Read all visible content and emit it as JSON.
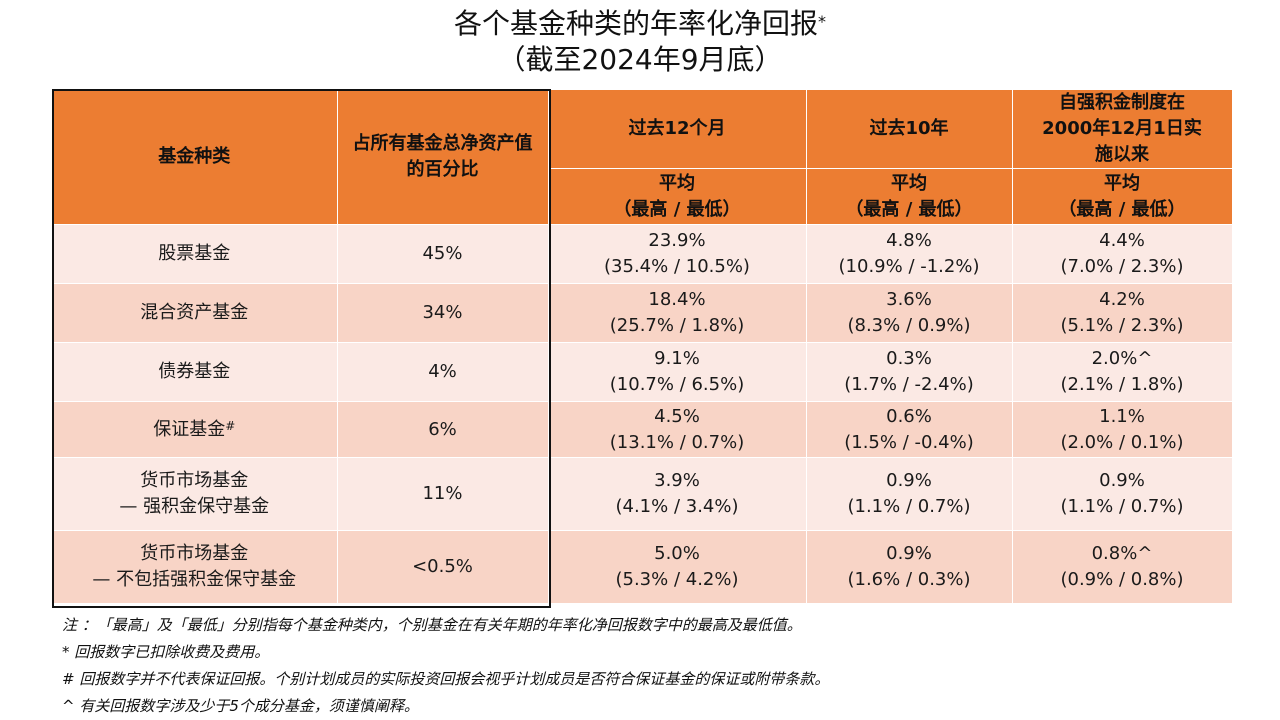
{
  "title": {
    "line1": "各个基金种类的年率化净回报",
    "line1_mark": "*",
    "line2": "（截至2024年9月底）"
  },
  "header": {
    "col1": "基金种类",
    "col2": "占所有基金总净资产值的百分比",
    "col3": "过去12个月",
    "col4": "过去10年",
    "col5": "自强积金制度在2000年12月1日实施以来",
    "sub3_avg": "平均",
    "sub3_range": "（最高 / 最低）",
    "sub4_avg": "平均",
    "sub4_range": "（最高 / 最低）",
    "sub5_avg": "平均",
    "sub5_range": "（最高 / 最低）"
  },
  "rows": [
    {
      "fund": "股票基金",
      "fund_mark": "",
      "fund2": "",
      "pct": "45%",
      "m12": "23.9%",
      "m12_range": "(35.4% / 10.5%)",
      "y10": "4.8%",
      "y10_range": "(10.9% / -1.2%)",
      "since": "4.4%",
      "since_range": "(7.0% / 2.3%)"
    },
    {
      "fund": "混合资产基金",
      "fund_mark": "",
      "fund2": "",
      "pct": "34%",
      "m12": "18.4%",
      "m12_range": "(25.7% / 1.8%)",
      "y10": "3.6%",
      "y10_range": "(8.3% / 0.9%)",
      "since": "4.2%",
      "since_range": "(5.1% / 2.3%)"
    },
    {
      "fund": "债券基金",
      "fund_mark": "",
      "fund2": "",
      "pct": "4%",
      "m12": "9.1%",
      "m12_range": "(10.7% / 6.5%)",
      "y10": "0.3%",
      "y10_range": "(1.7% / -2.4%)",
      "since": "2.0%^",
      "since_range": "(2.1% / 1.8%)"
    },
    {
      "fund": "保证基金",
      "fund_mark": "#",
      "fund2": "",
      "pct": "6%",
      "m12": "4.5%",
      "m12_range": "(13.1% / 0.7%)",
      "y10": "0.6%",
      "y10_range": "(1.5% / -0.4%)",
      "since": "1.1%",
      "since_range": "(2.0% / 0.1%)"
    },
    {
      "fund": "货币市场基金",
      "fund_mark": "",
      "fund2": "— 强积金保守基金",
      "pct": "11%",
      "m12": "3.9%",
      "m12_range": "(4.1% / 3.4%)",
      "y10": "0.9%",
      "y10_range": "(1.1% / 0.7%)",
      "since": "0.9%",
      "since_range": "(1.1% / 0.7%)"
    },
    {
      "fund": "货币市场基金",
      "fund_mark": "",
      "fund2": "— 不包括强积金保守基金",
      "pct": "<0.5%",
      "m12": "5.0%",
      "m12_range": "(5.3% / 4.2%)",
      "y10": "0.9%",
      "y10_range": "(1.6% / 0.3%)",
      "since": "0.8%^",
      "since_range": "(0.9% / 0.8%)"
    }
  ],
  "notes": [
    "注 ：「最高」及「最低」分别指每个基金种类内，个别基金在有关年期的年率化净回报数字中的最高及最低值。",
    "* 回报数字已扣除收费及费用。",
    "# 回报数字并不代表保证回报。个别计划成员的实际投资回报会视乎计划成员是否符合保证基金的保证或附带条款。",
    "^ 有关回报数字涉及少于5个成分基金，须谨慎阐释。"
  ],
  "colors": {
    "header_bg": "#ec7d32",
    "row_light": "#fbe9e4",
    "row_dark": "#f8d4c6"
  }
}
